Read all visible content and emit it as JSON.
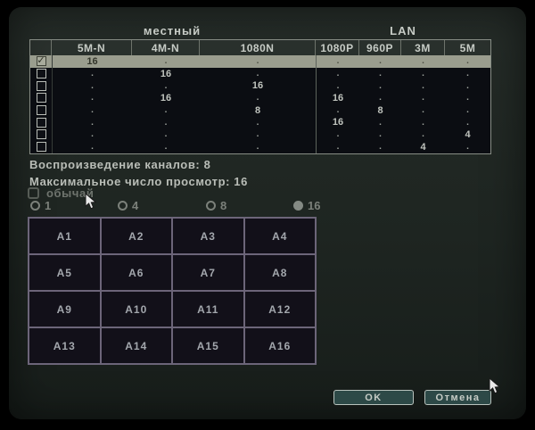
{
  "table": {
    "section_local": "местный",
    "section_lan": "LAN",
    "columns": [
      "5M-N",
      "4M-N",
      "1080N",
      "1080P",
      "960P",
      "3M",
      "5M"
    ],
    "rows": [
      {
        "checked": true,
        "selected": true,
        "values": [
          "16",
          ".",
          ".",
          ".",
          ".",
          ".",
          "."
        ]
      },
      {
        "checked": false,
        "selected": false,
        "values": [
          ".",
          "16",
          ".",
          ".",
          ".",
          ".",
          "."
        ]
      },
      {
        "checked": false,
        "selected": false,
        "values": [
          ".",
          ".",
          "16",
          ".",
          ".",
          ".",
          "."
        ]
      },
      {
        "checked": false,
        "selected": false,
        "values": [
          ".",
          "16",
          ".",
          "16",
          ".",
          ".",
          "."
        ]
      },
      {
        "checked": false,
        "selected": false,
        "values": [
          ".",
          ".",
          "8",
          ".",
          "8",
          ".",
          "."
        ]
      },
      {
        "checked": false,
        "selected": false,
        "values": [
          ".",
          ".",
          ".",
          "16",
          ".",
          ".",
          "."
        ]
      },
      {
        "checked": false,
        "selected": false,
        "values": [
          ".",
          ".",
          ".",
          ".",
          ".",
          ".",
          "4"
        ]
      },
      {
        "checked": false,
        "selected": false,
        "values": [
          ".",
          ".",
          ".",
          ".",
          ".",
          "4",
          "."
        ]
      }
    ]
  },
  "info": {
    "playback": "Воспроизведение каналов: 8",
    "max_view": "Максимальное число просмотр: 16"
  },
  "custom": {
    "label": "обычай",
    "checked": false
  },
  "split_options": [
    {
      "label": "1",
      "selected": false
    },
    {
      "label": "4",
      "selected": false
    },
    {
      "label": "8",
      "selected": false
    },
    {
      "label": "16",
      "selected": true
    }
  ],
  "grid": {
    "cells": [
      "A1",
      "A2",
      "A3",
      "A4",
      "A5",
      "A6",
      "A7",
      "A8",
      "A9",
      "A10",
      "A11",
      "A12",
      "A13",
      "A14",
      "A15",
      "A16"
    ]
  },
  "buttons": {
    "ok": "OK",
    "cancel": "Отмена"
  },
  "colors": {
    "dialog_bg": "#1e2521",
    "table_body_bg": "#0b0d12",
    "selected_row_bg": "#9a9d8e",
    "grid_line": "#6c6579",
    "button_bg": "#2d4947",
    "text_bright": "#c6cbc5",
    "text_dim": "#6f746e"
  }
}
